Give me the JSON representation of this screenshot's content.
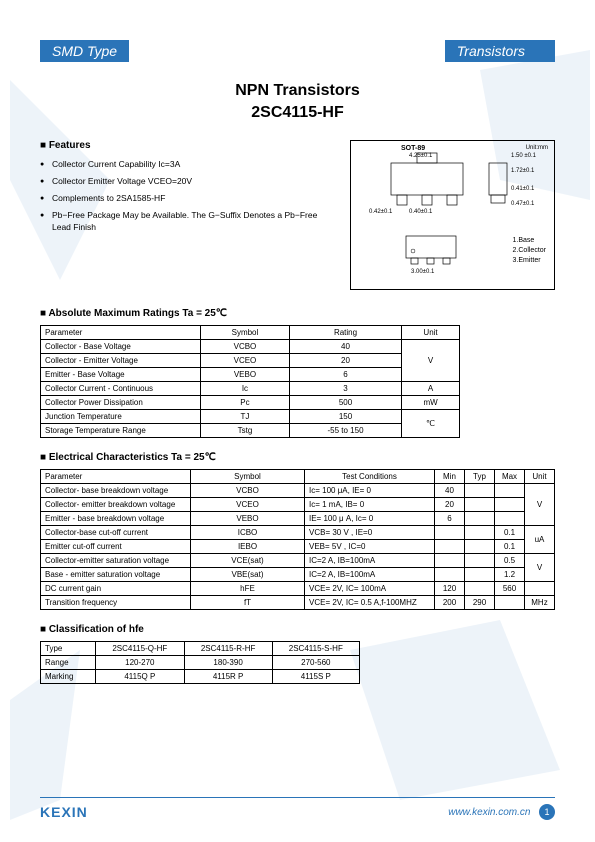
{
  "header": {
    "left": "SMD Type",
    "right": "Transistors"
  },
  "title": {
    "line1": "NPN  Transistors",
    "line2": "2SC4115-HF"
  },
  "features": {
    "heading": "Features",
    "items": [
      "Collector Current Capability Ic=3A",
      "Collector Emitter Voltage VCEO=20V",
      "Complements to 2SA1585-HF",
      "Pb−Free Package May be Available. The G−Suffix Denotes a Pb−Free Lead Finish"
    ]
  },
  "diagram": {
    "pkg_label": "SOT-89",
    "unit_label": "Unit:mm",
    "dims": [
      "4.25±0.1",
      "1.50 ±0.1",
      "1.72±0.1",
      "0.41±0.1",
      "0.47±0.1",
      "0.42±0.1",
      "0.40±0.1",
      "3.00±0.1"
    ],
    "pins": [
      "1.Base",
      "2.Collector",
      "3.Emitter"
    ]
  },
  "abs_max": {
    "title": "Absolute Maximum Ratings Ta = 25℃",
    "headers": [
      "Parameter",
      "Symbol",
      "Rating",
      "Unit"
    ],
    "rows": [
      {
        "p": "Collector - Base Voltage",
        "s": "VCBO",
        "r": "40",
        "u": "V",
        "rs": 3
      },
      {
        "p": "Collector - Emitter Voltage",
        "s": "VCEO",
        "r": "20"
      },
      {
        "p": "Emitter - Base Voltage",
        "s": "VEBO",
        "r": "6"
      },
      {
        "p": "Collector Current  - Continuous",
        "s": "Ic",
        "r": "3",
        "u": "A"
      },
      {
        "p": "Collector Power Dissipation",
        "s": "Pc",
        "r": "500",
        "u": "mW"
      },
      {
        "p": "Junction Temperature",
        "s": "TJ",
        "r": "150",
        "u": "℃",
        "rs": 2
      },
      {
        "p": "Storage Temperature Range",
        "s": "Tstg",
        "r": "-55 to 150"
      }
    ]
  },
  "elec": {
    "title": "Electrical Characteristics Ta = 25℃",
    "headers": [
      "Parameter",
      "Symbol",
      "Test Conditions",
      "Min",
      "Typ",
      "Max",
      "Unit"
    ],
    "rows": [
      {
        "p": "Collector- base breakdown voltage",
        "s": "VCBO",
        "tc": "Ic= 100 μA,   IE= 0",
        "min": "40",
        "typ": "",
        "max": "",
        "u": "V",
        "rs": 3
      },
      {
        "p": "Collector- emitter breakdown voltage",
        "s": "VCEO",
        "tc": "Ic= 1 mA,   IB= 0",
        "min": "20",
        "typ": "",
        "max": ""
      },
      {
        "p": "Emitter - base breakdown voltage",
        "s": "VEBO",
        "tc": "IE= 100 μ A,   Ic= 0",
        "min": "6",
        "typ": "",
        "max": ""
      },
      {
        "p": "Collector-base cut-off current",
        "s": "ICBO",
        "tc": "VCB= 30 V , IE=0",
        "min": "",
        "typ": "",
        "max": "0.1",
        "u": "uA",
        "rs": 2
      },
      {
        "p": "Emitter cut-off current",
        "s": "IEBO",
        "tc": "VEB= 5V , IC=0",
        "min": "",
        "typ": "",
        "max": "0.1"
      },
      {
        "p": "Collector-emitter saturation voltage",
        "s": "VCE(sat)",
        "tc": "IC=2 A, IB=100mA",
        "min": "",
        "typ": "",
        "max": "0.5",
        "u": "V",
        "rs": 2
      },
      {
        "p": "Base - emitter saturation voltage",
        "s": "VBE(sat)",
        "tc": "IC=2 A, IB=100mA",
        "min": "",
        "typ": "",
        "max": "1.2"
      },
      {
        "p": "DC current gain",
        "s": "hFE",
        "tc": "VCE= 2V, IC= 100mA",
        "min": "120",
        "typ": "",
        "max": "560",
        "u": ""
      },
      {
        "p": "Transition frequency",
        "s": "fT",
        "tc": "VCE= 2V, IC= 0.5 A,f-100MHZ",
        "min": "200",
        "typ": "290",
        "max": "",
        "u": "MHz"
      }
    ]
  },
  "hfe": {
    "title": "Classification of hfe",
    "rows": [
      [
        "Type",
        "2SC4115-Q-HF",
        "2SC4115-R-HF",
        "2SC4115-S-HF"
      ],
      [
        "Range",
        "120-270",
        "180-390",
        "270-560"
      ],
      [
        "Marking",
        "4115Q P",
        "4115R P",
        "4115S P"
      ]
    ]
  },
  "footer": {
    "logo": "KEXIN",
    "url": "www.kexin.com.cn",
    "page": "1"
  }
}
